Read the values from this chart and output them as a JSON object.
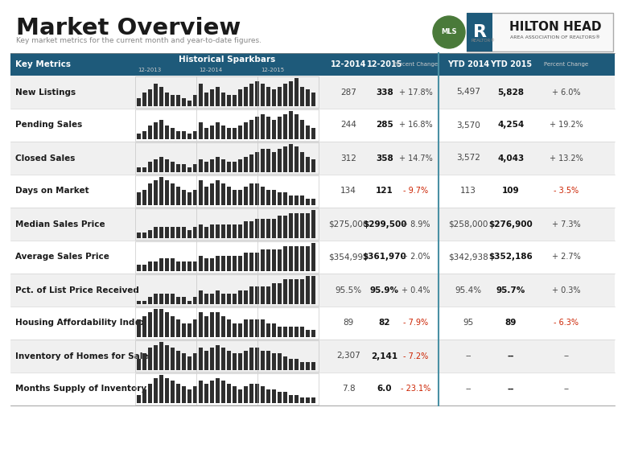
{
  "title": "Market Overview",
  "subtitle": "Key market metrics for the current month and year-to-date figures.",
  "header_bg": "#1e5a7a",
  "header_text": "#ffffff",
  "row_bg_odd": "#ffffff",
  "row_bg_even": "#f0f0f0",
  "col_divider": "#4a90a4",
  "sparkbar_sublabels": [
    "12-2013",
    "12-2014",
    "12-2015"
  ],
  "rows": [
    {
      "metric": "New Listings",
      "val2014": "287",
      "val2015": "338",
      "pct_change": "+ 17.8%",
      "ytd2014": "5,497",
      "ytd2015": "5,828",
      "ytd_pct": "+ 6.0%",
      "pct_positive": true,
      "ytd_positive": true,
      "spark": [
        3,
        5,
        6,
        8,
        7,
        5,
        4,
        4,
        3,
        2,
        4,
        8,
        5,
        6,
        7,
        5,
        4,
        4,
        6,
        7,
        8,
        9,
        8,
        7,
        6,
        7,
        8,
        9,
        10,
        7,
        6,
        5
      ]
    },
    {
      "metric": "Pending Sales",
      "val2014": "244",
      "val2015": "285",
      "pct_change": "+ 16.8%",
      "ytd2014": "3,570",
      "ytd2015": "4,254",
      "ytd_pct": "+ 19.2%",
      "pct_positive": true,
      "ytd_positive": true,
      "spark": [
        2,
        3,
        5,
        6,
        7,
        5,
        4,
        3,
        3,
        2,
        3,
        6,
        4,
        5,
        6,
        5,
        4,
        4,
        5,
        6,
        7,
        8,
        9,
        8,
        7,
        8,
        9,
        10,
        9,
        7,
        5,
        4
      ]
    },
    {
      "metric": "Closed Sales",
      "val2014": "312",
      "val2015": "358",
      "pct_change": "+ 14.7%",
      "ytd2014": "3,572",
      "ytd2015": "4,043",
      "ytd_pct": "+ 13.2%",
      "pct_positive": true,
      "ytd_positive": true,
      "spark": [
        2,
        2,
        4,
        5,
        6,
        5,
        4,
        3,
        3,
        2,
        3,
        5,
        4,
        5,
        6,
        5,
        4,
        4,
        5,
        6,
        7,
        8,
        9,
        9,
        8,
        9,
        10,
        11,
        10,
        8,
        6,
        5
      ]
    },
    {
      "metric": "Days on Market",
      "val2014": "134",
      "val2015": "121",
      "pct_change": "- 9.7%",
      "ytd2014": "113",
      "ytd2015": "109",
      "ytd_pct": "- 3.5%",
      "pct_positive": false,
      "ytd_positive": false,
      "spark": [
        4,
        5,
        7,
        8,
        9,
        8,
        7,
        6,
        5,
        4,
        5,
        8,
        6,
        7,
        8,
        7,
        6,
        5,
        5,
        6,
        7,
        7,
        6,
        5,
        5,
        4,
        4,
        3,
        3,
        3,
        2,
        2
      ]
    },
    {
      "metric": "Median Sales Price",
      "val2014": "$275,000",
      "val2015": "$299,500",
      "pct_change": "+ 8.9%",
      "ytd2014": "$258,000",
      "ytd2015": "$276,900",
      "ytd_pct": "+ 7.3%",
      "pct_positive": true,
      "ytd_positive": true,
      "spark": [
        2,
        2,
        3,
        4,
        4,
        4,
        4,
        4,
        4,
        3,
        4,
        5,
        4,
        5,
        5,
        5,
        5,
        5,
        5,
        6,
        6,
        7,
        7,
        7,
        7,
        8,
        8,
        9,
        9,
        9,
        9,
        10
      ]
    },
    {
      "metric": "Average Sales Price",
      "val2014": "$354,993",
      "val2015": "$361,970",
      "pct_change": "+ 2.0%",
      "ytd2014": "$342,938",
      "ytd2015": "$352,186",
      "ytd_pct": "+ 2.7%",
      "pct_positive": true,
      "ytd_positive": true,
      "spark": [
        2,
        2,
        3,
        3,
        4,
        4,
        4,
        3,
        3,
        3,
        3,
        5,
        4,
        4,
        5,
        5,
        5,
        5,
        5,
        6,
        6,
        6,
        7,
        7,
        7,
        7,
        8,
        8,
        8,
        8,
        8,
        9
      ]
    },
    {
      "metric": "Pct. of List Price Received",
      "val2014": "95.5%",
      "val2015": "95.9%",
      "pct_change": "+ 0.4%",
      "ytd2014": "95.4%",
      "ytd2015": "95.7%",
      "ytd_pct": "+ 0.3%",
      "pct_positive": true,
      "ytd_positive": true,
      "spark": [
        1,
        1,
        2,
        3,
        3,
        3,
        3,
        2,
        2,
        1,
        2,
        4,
        3,
        3,
        4,
        3,
        3,
        3,
        4,
        4,
        5,
        5,
        5,
        5,
        6,
        6,
        7,
        7,
        7,
        7,
        8,
        8
      ]
    },
    {
      "metric": "Housing Affordability Index",
      "val2014": "89",
      "val2015": "82",
      "pct_change": "- 7.9%",
      "ytd2014": "95",
      "ytd2015": "89",
      "ytd_pct": "- 6.3%",
      "pct_positive": false,
      "ytd_positive": false,
      "spark": [
        5,
        6,
        7,
        8,
        8,
        7,
        6,
        5,
        4,
        4,
        5,
        7,
        6,
        7,
        7,
        6,
        5,
        4,
        4,
        5,
        5,
        5,
        5,
        4,
        4,
        3,
        3,
        3,
        3,
        3,
        2,
        2
      ]
    },
    {
      "metric": "Inventory of Homes for Sale",
      "val2014": "2,307",
      "val2015": "2,141",
      "pct_change": "- 7.2%",
      "ytd2014": "--",
      "ytd2015": "--",
      "ytd_pct": "--",
      "pct_positive": false,
      "ytd_positive": null,
      "spark": [
        4,
        6,
        8,
        9,
        10,
        9,
        8,
        7,
        6,
        5,
        6,
        8,
        7,
        8,
        9,
        8,
        7,
        6,
        6,
        7,
        8,
        8,
        7,
        7,
        6,
        6,
        5,
        4,
        4,
        3,
        3,
        3
      ]
    },
    {
      "metric": "Months Supply of Inventory",
      "val2014": "7.8",
      "val2015": "6.0",
      "pct_change": "- 23.1%",
      "ytd2014": "--",
      "ytd2015": "--",
      "ytd_pct": "--",
      "pct_positive": false,
      "ytd_positive": null,
      "spark": [
        3,
        5,
        7,
        9,
        10,
        9,
        8,
        7,
        6,
        5,
        6,
        8,
        7,
        8,
        9,
        8,
        7,
        6,
        5,
        6,
        7,
        7,
        6,
        5,
        5,
        4,
        4,
        3,
        3,
        2,
        2,
        2
      ]
    }
  ]
}
